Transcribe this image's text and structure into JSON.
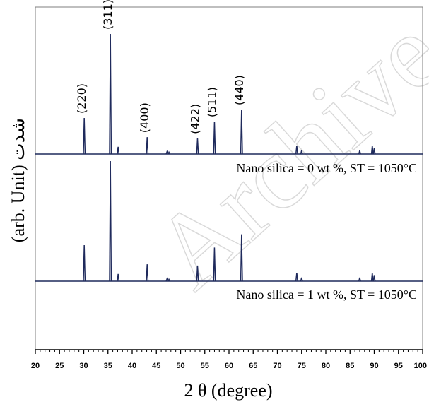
{
  "chart_data": {
    "type": "line",
    "xlabel": "2 θ (degree)",
    "ylabel": "(arb. Unit) شدت",
    "xlim": [
      20,
      100
    ],
    "x_ticks": [
      20,
      25,
      30,
      35,
      40,
      45,
      50,
      55,
      60,
      65,
      70,
      75,
      80,
      85,
      90,
      95,
      100
    ],
    "y_ticks_visible": false,
    "grid": false,
    "watermark": "Archive",
    "line_color": "#1f2a5c",
    "peak_labels": [
      {
        "text": "(220)",
        "x": 30.1
      },
      {
        "text": "(311)",
        "x": 35.5
      },
      {
        "text": "(400)",
        "x": 43.1
      },
      {
        "text": "(422)",
        "x": 53.5
      },
      {
        "text": "(511)",
        "x": 57.0
      },
      {
        "text": "(440)",
        "x": 62.6
      }
    ],
    "series": [
      {
        "name": "Nano silica = 0 wt %, ST = 1050°C",
        "peaks": [
          {
            "x": 30.1,
            "h": 0.3
          },
          {
            "x": 35.5,
            "h": 1.0
          },
          {
            "x": 37.1,
            "h": 0.06
          },
          {
            "x": 43.1,
            "h": 0.14
          },
          {
            "x": 47.2,
            "h": 0.02
          },
          {
            "x": 47.6,
            "h": 0.015
          },
          {
            "x": 53.5,
            "h": 0.13
          },
          {
            "x": 57.0,
            "h": 0.27
          },
          {
            "x": 62.6,
            "h": 0.37
          },
          {
            "x": 74.0,
            "h": 0.07
          },
          {
            "x": 75.0,
            "h": 0.03
          },
          {
            "x": 87.0,
            "h": 0.03
          },
          {
            "x": 89.6,
            "h": 0.07
          },
          {
            "x": 90.0,
            "h": 0.05
          }
        ]
      },
      {
        "name": "Nano silica = 1 wt %, ST = 1050°C",
        "peaks": [
          {
            "x": 30.1,
            "h": 0.3
          },
          {
            "x": 35.5,
            "h": 1.0
          },
          {
            "x": 37.1,
            "h": 0.06
          },
          {
            "x": 43.1,
            "h": 0.14
          },
          {
            "x": 47.2,
            "h": 0.02
          },
          {
            "x": 47.6,
            "h": 0.015
          },
          {
            "x": 53.5,
            "h": 0.13
          },
          {
            "x": 57.0,
            "h": 0.28
          },
          {
            "x": 62.6,
            "h": 0.39
          },
          {
            "x": 74.0,
            "h": 0.07
          },
          {
            "x": 75.0,
            "h": 0.03
          },
          {
            "x": 87.0,
            "h": 0.03
          },
          {
            "x": 89.6,
            "h": 0.07
          },
          {
            "x": 90.0,
            "h": 0.05
          }
        ]
      }
    ]
  }
}
